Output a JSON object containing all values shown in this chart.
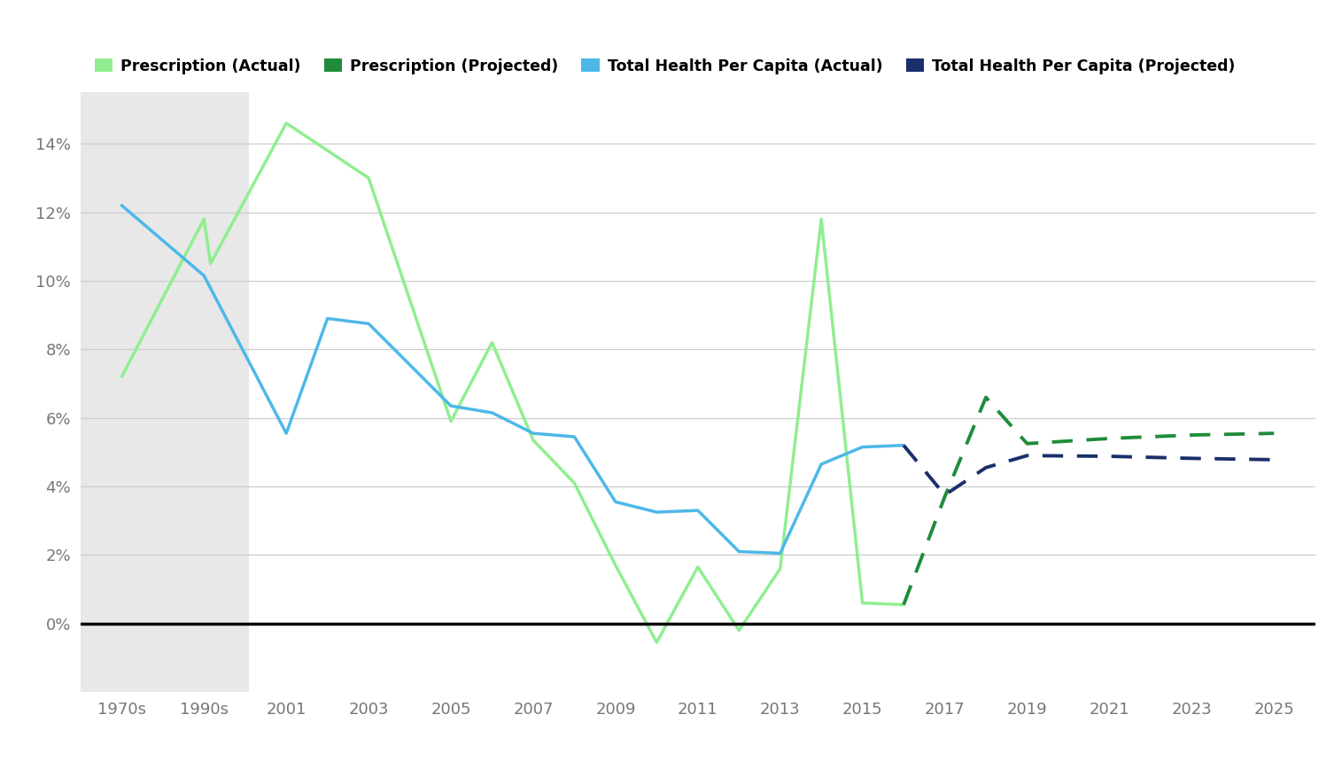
{
  "background_color": "#ffffff",
  "shaded_region_color": "#e8e8e8",
  "presc_actual_color": "#90EE90",
  "presc_proj_color": "#1f8c3b",
  "health_actual_color": "#4db8e8",
  "health_proj_color": "#1a2f6b",
  "x_tick_labels": [
    "1970s",
    "1990s",
    "2001",
    "2003",
    "2005",
    "2007",
    "2009",
    "2011",
    "2013",
    "2015",
    "2017",
    "2019",
    "2021",
    "2023",
    "2025"
  ],
  "x_positions": [
    0,
    1,
    2,
    3,
    4,
    5,
    6,
    7,
    8,
    9,
    10,
    11,
    12,
    13,
    14
  ],
  "presc_actual_x": [
    0,
    1,
    1.08,
    2,
    3,
    4,
    4.5,
    5,
    5.5,
    6,
    6.5,
    7,
    7.5,
    8,
    8.5,
    9,
    9.5
  ],
  "presc_actual_y": [
    7.2,
    11.8,
    10.5,
    14.6,
    13.0,
    5.9,
    8.2,
    5.35,
    4.1,
    1.7,
    -0.55,
    1.65,
    -0.2,
    1.6,
    11.8,
    0.6,
    0.55
  ],
  "health_actual_x": [
    0,
    1,
    2,
    2.5,
    3,
    4,
    4.5,
    5,
    5.5,
    6,
    6.5,
    7,
    7.5,
    8,
    8.5,
    9,
    9.5
  ],
  "health_actual_y": [
    12.2,
    10.15,
    5.55,
    8.9,
    8.75,
    6.35,
    6.15,
    5.55,
    5.45,
    3.55,
    3.25,
    3.3,
    2.1,
    2.05,
    4.65,
    5.15,
    5.2
  ],
  "presc_proj_x": [
    9.5,
    10.0,
    10.5,
    11,
    12,
    13,
    14
  ],
  "presc_proj_y": [
    0.55,
    3.7,
    6.6,
    5.25,
    5.4,
    5.5,
    5.55
  ],
  "health_proj_x": [
    9.5,
    10.0,
    10.5,
    11,
    12,
    13,
    14
  ],
  "health_proj_y": [
    5.2,
    3.75,
    4.55,
    4.9,
    4.88,
    4.82,
    4.78
  ],
  "ylim": [
    -2.0,
    15.5
  ],
  "yticks": [
    0,
    2,
    4,
    6,
    8,
    10,
    12,
    14
  ],
  "ytick_labels": [
    "0%",
    "2%",
    "4%",
    "6%",
    "8%",
    "10%",
    "12%",
    "14%"
  ],
  "legend_labels": [
    "Prescription (Actual)",
    "Prescription (Projected)",
    "Total Health Per Capita (Actual)",
    "Total Health Per Capita (Projected)"
  ]
}
